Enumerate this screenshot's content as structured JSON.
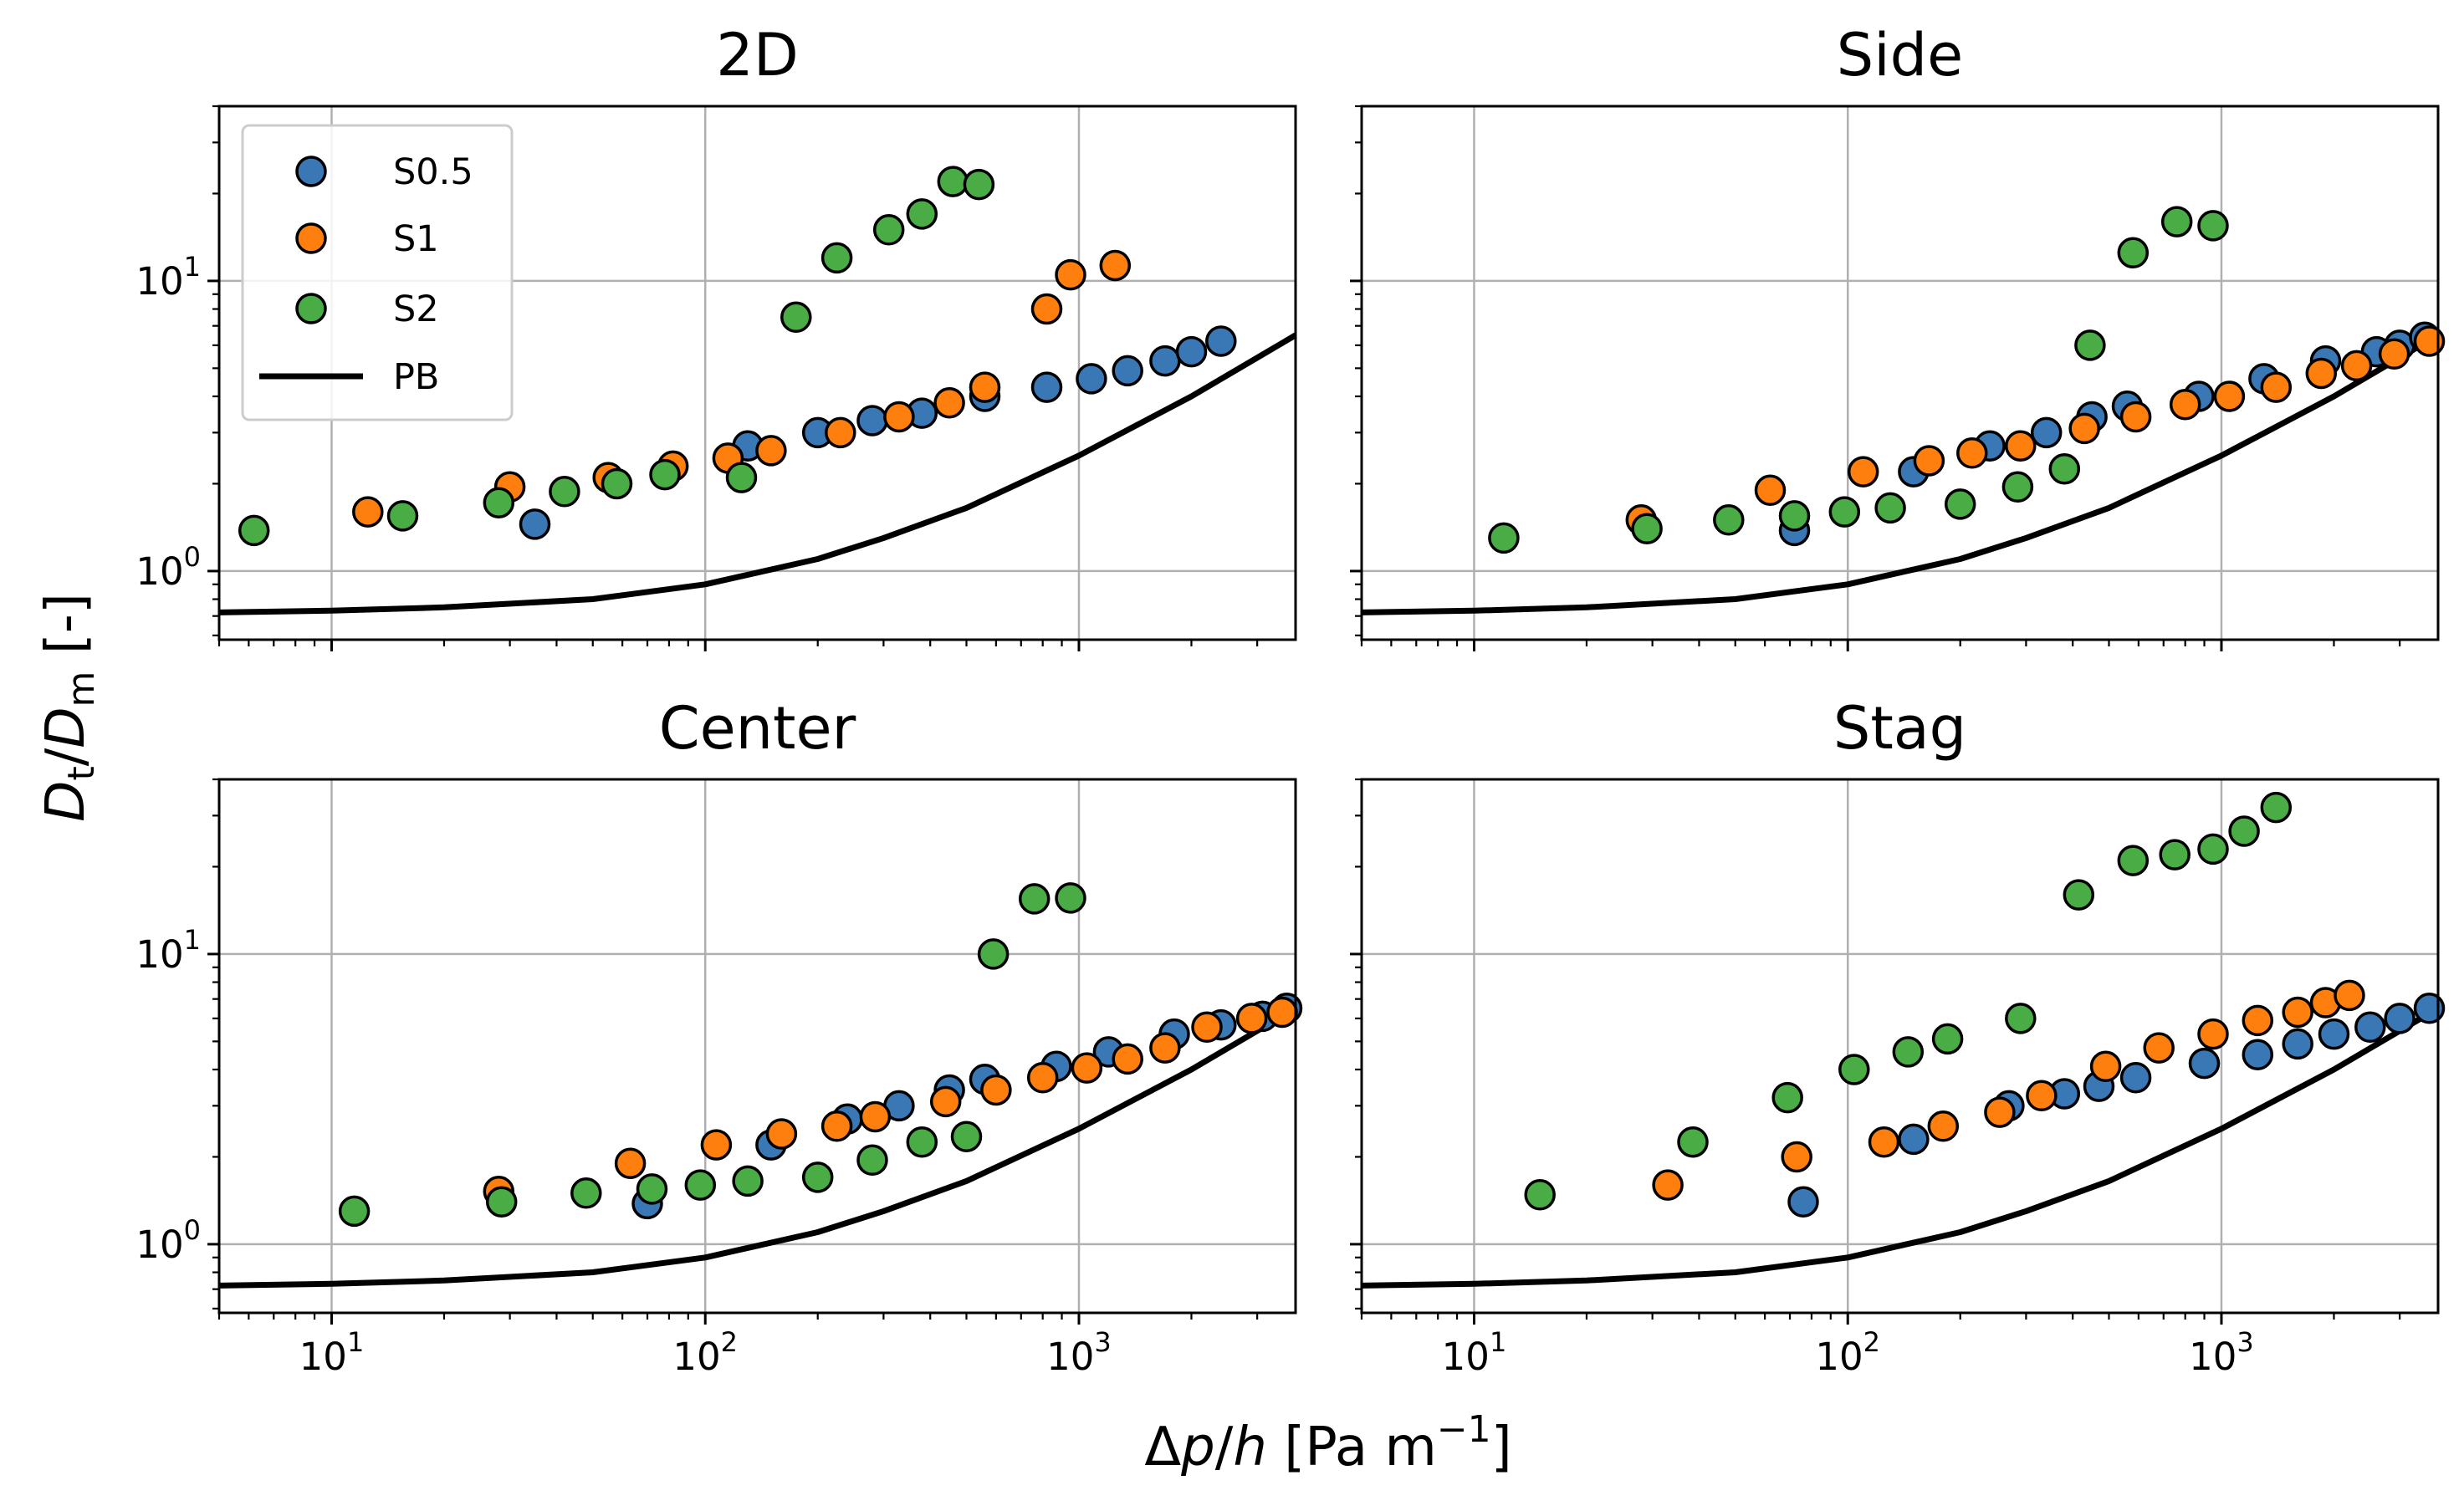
{
  "chart_data": {
    "type": "scatter",
    "xlabel": "Δp/h [Pa m⁻¹]",
    "ylabel": "Dt/Dm [-]",
    "x_scale": "log",
    "y_scale": "log",
    "xlim": [
      5,
      3800
    ],
    "ylim": [
      0.58,
      40
    ],
    "x_ticks": [
      {
        "value": 10,
        "base": "10",
        "exp": "1"
      },
      {
        "value": 100,
        "base": "10",
        "exp": "2"
      },
      {
        "value": 1000,
        "base": "10",
        "exp": "3"
      }
    ],
    "y_ticks": [
      {
        "value": 1,
        "base": "10",
        "exp": "0"
      },
      {
        "value": 10,
        "base": "10",
        "exp": "1"
      }
    ],
    "grid": true,
    "legend": {
      "placement": "top-left of first panel",
      "entries": [
        {
          "label": "S0.5",
          "kind": "marker",
          "series": "S0.5"
        },
        {
          "label": "S1",
          "kind": "marker",
          "series": "S1"
        },
        {
          "label": "S2",
          "kind": "marker",
          "series": "S2"
        },
        {
          "label": "PB",
          "kind": "line",
          "series": "PB"
        }
      ]
    },
    "colors": {
      "S0.5": "#3a78b5",
      "S1": "#ff7f0e",
      "S2": "#4aac45",
      "PB": "#000000"
    },
    "pb_curve": {
      "label": "PB",
      "x": [
        5,
        10,
        20,
        50,
        100,
        200,
        300,
        500,
        1000,
        2000,
        3800
      ],
      "y": [
        0.72,
        0.73,
        0.75,
        0.8,
        0.9,
        1.1,
        1.3,
        1.65,
        2.5,
        4.0,
        6.5
      ]
    },
    "panels": [
      {
        "title": "2D",
        "series": [
          {
            "name": "S0.5",
            "x": [
              35,
              130,
              200,
              280,
              380,
              560,
              820,
              1080,
              1350,
              1700,
              2000,
              2400
            ],
            "y": [
              1.45,
              2.7,
              3.0,
              3.3,
              3.5,
              4.0,
              4.3,
              4.6,
              4.9,
              5.3,
              5.7,
              6.2
            ]
          },
          {
            "name": "S1",
            "x": [
              12.5,
              30,
              55,
              82,
              115,
              150,
              230,
              330,
              450,
              560,
              820,
              950,
              1250
            ],
            "y": [
              1.6,
              1.95,
              2.1,
              2.3,
              2.45,
              2.6,
              3.0,
              3.4,
              3.8,
              4.3,
              8.0,
              10.5,
              11.3
            ]
          },
          {
            "name": "S2",
            "x": [
              6.2,
              15.5,
              28,
              42,
              58,
              78,
              125,
              175,
              225,
              310,
              380,
              460,
              540
            ],
            "y": [
              1.38,
              1.55,
              1.72,
              1.88,
              2.0,
              2.15,
              2.1,
              7.5,
              12.0,
              15.0,
              17.0,
              22.0,
              21.5
            ]
          }
        ]
      },
      {
        "title": "Side",
        "series": [
          {
            "name": "S0.5",
            "x": [
              72,
              150,
              240,
              340,
              450,
              560,
              870,
              1300,
              1900,
              2600,
              3000,
              3500
            ],
            "y": [
              1.38,
              2.2,
              2.7,
              3.0,
              3.4,
              3.7,
              4.0,
              4.6,
              5.3,
              5.7,
              6.0,
              6.4
            ]
          },
          {
            "name": "S1",
            "x": [
              28,
              62,
              110,
              165,
              215,
              290,
              430,
              590,
              800,
              1050,
              1400,
              1850,
              2300,
              2900,
              3600
            ],
            "y": [
              1.5,
              1.9,
              2.2,
              2.4,
              2.55,
              2.7,
              3.1,
              3.4,
              3.75,
              4.0,
              4.3,
              4.8,
              5.1,
              5.6,
              6.2
            ]
          },
          {
            "name": "S2",
            "x": [
              12,
              29,
              48,
              72,
              98,
              130,
              200,
              285,
              380,
              445,
              580,
              760,
              950
            ],
            "y": [
              1.3,
              1.4,
              1.5,
              1.55,
              1.6,
              1.65,
              1.7,
              1.95,
              2.25,
              6.0,
              12.5,
              16.0,
              15.5
            ]
          }
        ]
      },
      {
        "title": "Center",
        "series": [
          {
            "name": "S0.5",
            "x": [
              70,
              150,
              240,
              330,
              450,
              560,
              870,
              1200,
              1800,
              2400,
              3100,
              3600
            ],
            "y": [
              1.38,
              2.2,
              2.7,
              3.0,
              3.4,
              3.7,
              4.1,
              4.6,
              5.3,
              5.7,
              6.1,
              6.5
            ]
          },
          {
            "name": "S1",
            "x": [
              28,
              63,
              107,
              160,
              225,
              285,
              440,
              600,
              800,
              1050,
              1350,
              1700,
              2200,
              2900,
              3500
            ],
            "y": [
              1.52,
              1.9,
              2.2,
              2.4,
              2.55,
              2.75,
              3.1,
              3.4,
              3.75,
              4.05,
              4.35,
              4.75,
              5.6,
              6.0,
              6.3
            ]
          },
          {
            "name": "S2",
            "x": [
              11.5,
              28.5,
              48,
              72,
              97,
              130,
              200,
              280,
              380,
              500,
              590,
              760,
              950
            ],
            "y": [
              1.3,
              1.4,
              1.5,
              1.55,
              1.6,
              1.65,
              1.7,
              1.95,
              2.25,
              2.35,
              10.0,
              15.5,
              15.6
            ]
          }
        ]
      },
      {
        "title": "Stag",
        "series": [
          {
            "name": "S0.5",
            "x": [
              76,
              150,
              270,
              380,
              470,
              590,
              900,
              1250,
              1600,
              2000,
              2500,
              3000,
              3600
            ],
            "y": [
              1.4,
              2.3,
              3.0,
              3.3,
              3.5,
              3.75,
              4.2,
              4.5,
              4.9,
              5.3,
              5.6,
              6.0,
              6.5
            ]
          },
          {
            "name": "S1",
            "x": [
              33,
              73,
              125,
              180,
              255,
              330,
              490,
              680,
              950,
              1250,
              1600,
              1900,
              2200
            ],
            "y": [
              1.6,
              2.0,
              2.25,
              2.55,
              2.85,
              3.25,
              4.1,
              4.75,
              5.3,
              5.9,
              6.3,
              6.8,
              7.2
            ]
          },
          {
            "name": "S2",
            "x": [
              15,
              38.5,
              69,
              104,
              145,
              185,
              290,
              415,
              580,
              750,
              950,
              1150,
              1400
            ],
            "y": [
              1.48,
              2.25,
              3.2,
              4.0,
              4.6,
              5.1,
              6.0,
              16.0,
              21.0,
              22.0,
              23.0,
              26.5,
              32.0
            ]
          }
        ]
      }
    ]
  }
}
